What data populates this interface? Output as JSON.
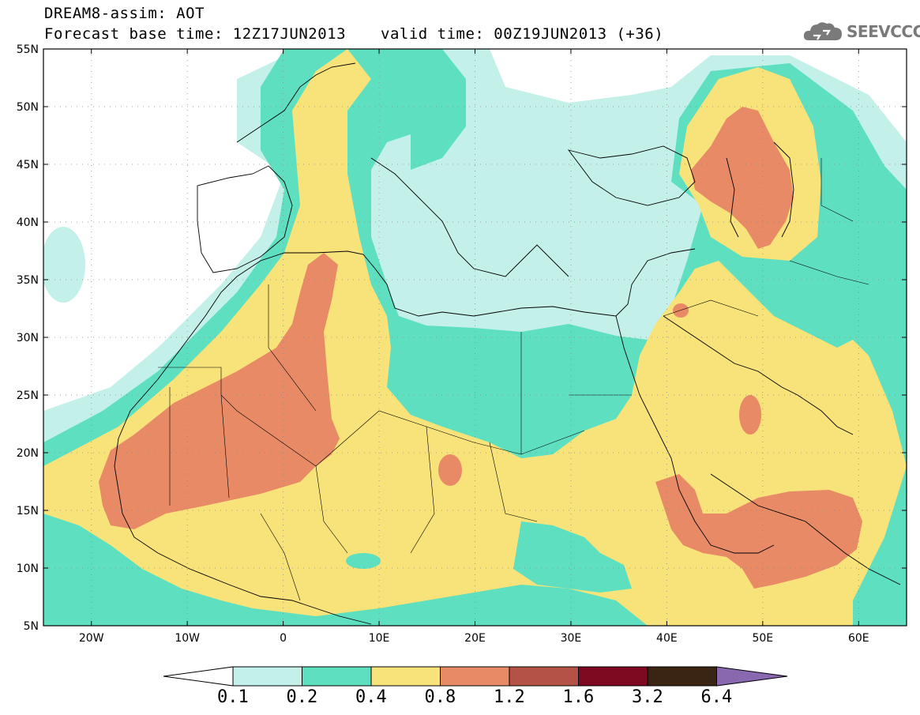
{
  "header": {
    "line1": "DREAM8-assim: AOT",
    "line2a": "Forecast base time: 12Z17JUN2013",
    "line2b": "valid time: 00Z19JUN2013 (+36)"
  },
  "logo": {
    "text": "SEEVCCC",
    "icon": "cloud-icon"
  },
  "map": {
    "lon_range": [
      -25,
      65
    ],
    "lat_range": [
      5,
      55
    ],
    "lat_ticks": [
      "55N",
      "50N",
      "45N",
      "40N",
      "35N",
      "30N",
      "25N",
      "20N",
      "15N",
      "10N",
      "5N"
    ],
    "lon_ticks": [
      "20W",
      "10W",
      "0",
      "10E",
      "20E",
      "30E",
      "40E",
      "50E",
      "60E"
    ],
    "grid": "dotted"
  },
  "colorbar": {
    "labels": [
      "0.1",
      "0.2",
      "0.4",
      "0.8",
      "1.2",
      "1.6",
      "3.2",
      "6.4"
    ],
    "colors": [
      "#ffffff",
      "#c4f0ea",
      "#5ee0c0",
      "#f8e27a",
      "#e88a66",
      "#b55246",
      "#7e0a22",
      "#3a2414",
      "#8a68b0"
    ]
  }
}
